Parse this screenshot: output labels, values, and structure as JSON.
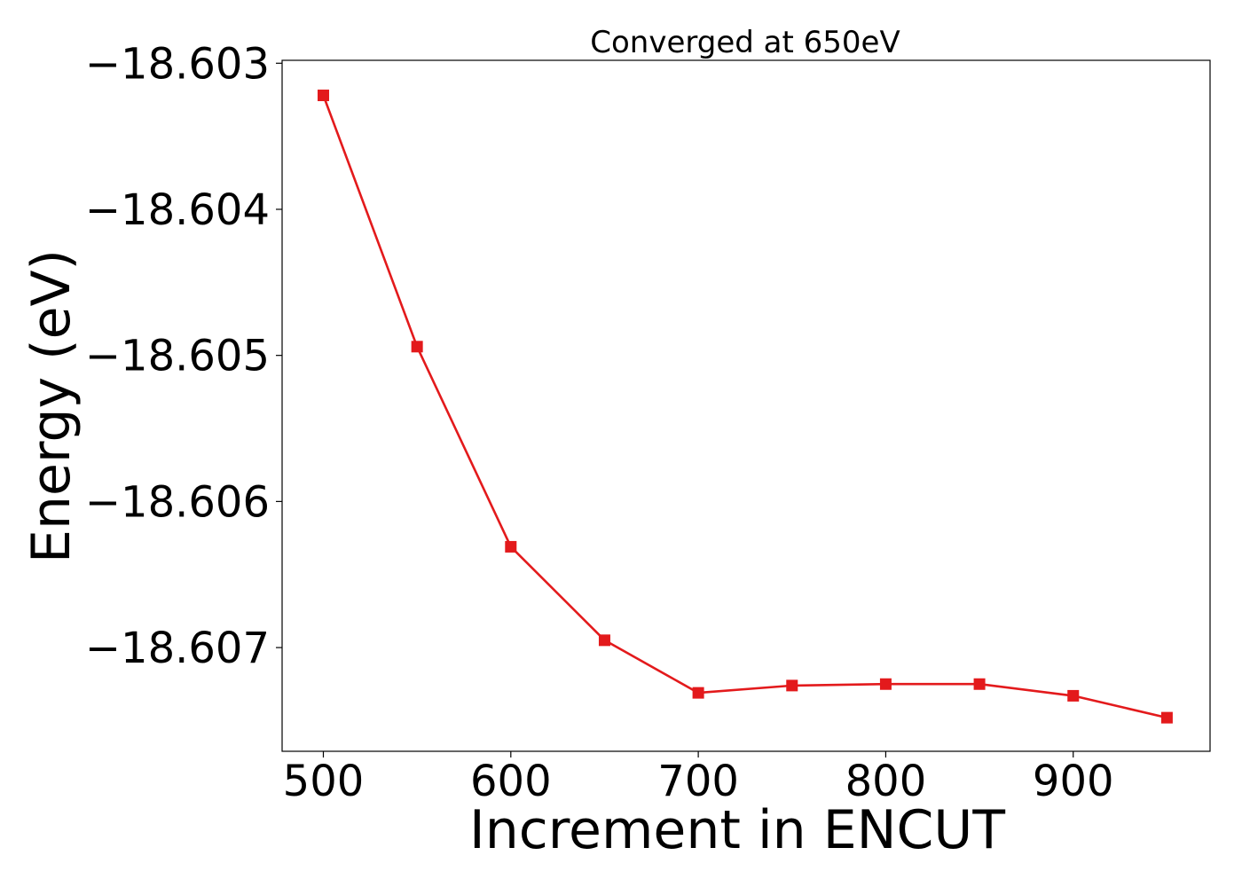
{
  "chart_data": {
    "type": "line",
    "title": "Converged at 650eV",
    "xlabel": "Increment in ENCUT",
    "ylabel": "Energy (eV)",
    "x": [
      500,
      550,
      600,
      650,
      700,
      750,
      800,
      850,
      900,
      950
    ],
    "series": [
      {
        "values": [
          -18.60322,
          -18.60494,
          -18.60631,
          -18.60695,
          -18.60731,
          -18.60726,
          -18.60725,
          -18.60725,
          -18.60733,
          -18.60748
        ],
        "color": "#e31a1c",
        "marker": "square"
      }
    ],
    "xlim": [
      478,
      973
    ],
    "ylim": [
      -18.60771,
      -18.60298
    ],
    "xticks": [
      500,
      600,
      700,
      800,
      900
    ],
    "xtick_labels": [
      "500",
      "600",
      "700",
      "800",
      "900"
    ],
    "yticks": [
      -18.603,
      -18.604,
      -18.605,
      -18.606,
      -18.607
    ],
    "ytick_labels": [
      "−18.603",
      "−18.604",
      "−18.605",
      "−18.606",
      "−18.607"
    ],
    "grid": false,
    "legend": "none"
  }
}
